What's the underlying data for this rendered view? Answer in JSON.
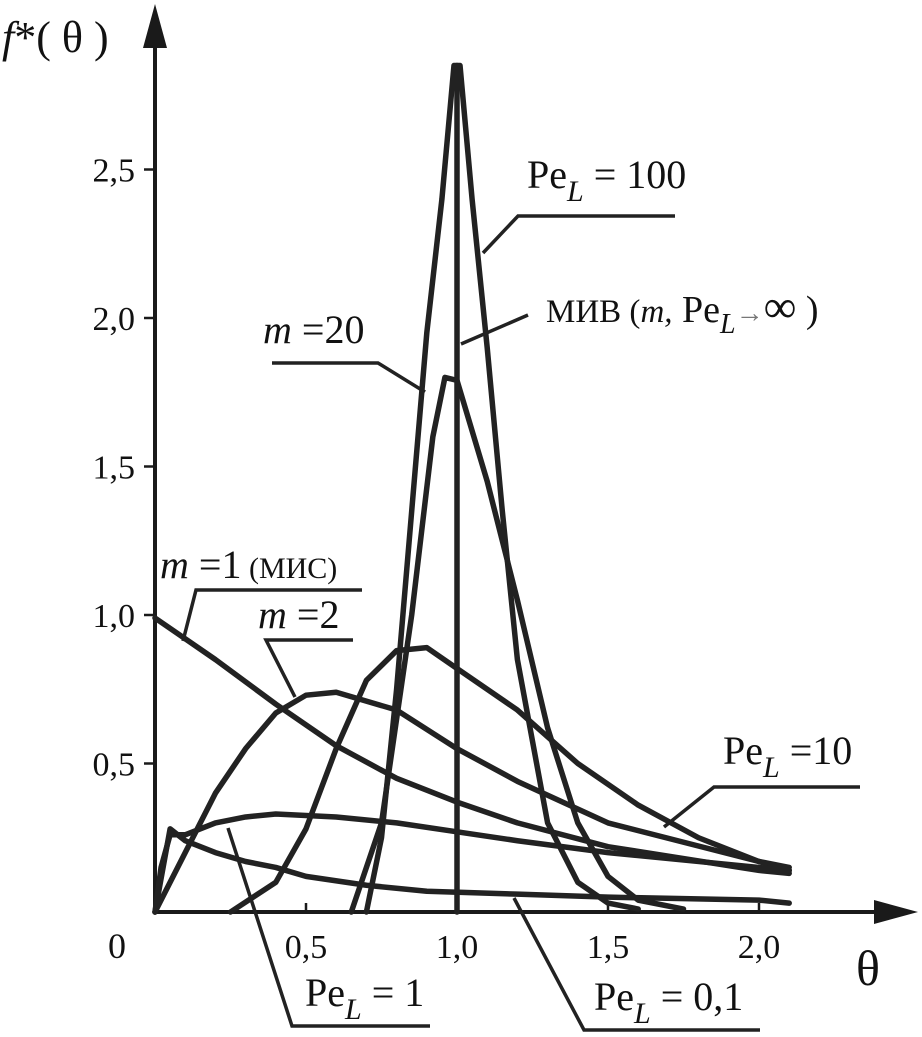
{
  "chart_data": {
    "type": "line",
    "title": "",
    "xlabel": "θ",
    "ylabel_prefix": "f",
    "ylabel_suffix": "*( θ )",
    "origin_label": "0",
    "xlim": [
      0,
      2.55
    ],
    "ylim": [
      0,
      2.95
    ],
    "x_ticks": [
      {
        "value": 0.5,
        "label": "0,5"
      },
      {
        "value": 1.0,
        "label": "1,0"
      },
      {
        "value": 1.5,
        "label": "1,5"
      },
      {
        "value": 2.0,
        "label": "2,0"
      }
    ],
    "y_ticks": [
      {
        "value": 0.5,
        "label": "0,5"
      },
      {
        "value": 1.0,
        "label": "1,0"
      },
      {
        "value": 1.5,
        "label": "1,5"
      },
      {
        "value": 2.0,
        "label": "2,0"
      },
      {
        "value": 2.5,
        "label": "2,5"
      }
    ],
    "grid": false,
    "series": [
      {
        "name": "m =1 (МИС)",
        "x": [
          0,
          0.2,
          0.4,
          0.6,
          0.8,
          1.0,
          1.2,
          1.5,
          2.0,
          2.1
        ],
        "y": [
          0.99,
          0.85,
          0.7,
          0.56,
          0.45,
          0.37,
          0.3,
          0.22,
          0.14,
          0.13
        ]
      },
      {
        "name": "m =2",
        "x": [
          0,
          0.1,
          0.2,
          0.3,
          0.4,
          0.5,
          0.6,
          0.8,
          1.0,
          1.2,
          1.5,
          2.0,
          2.1
        ],
        "y": [
          0,
          0.2,
          0.4,
          0.55,
          0.67,
          0.73,
          0.74,
          0.68,
          0.55,
          0.44,
          0.3,
          0.17,
          0.15
        ]
      },
      {
        "name": "m =20",
        "x": [
          0.65,
          0.75,
          0.85,
          0.92,
          0.96,
          1.0,
          1.1,
          1.2,
          1.3,
          1.4,
          1.5,
          1.6,
          1.75
        ],
        "y": [
          0,
          0.3,
          1.0,
          1.6,
          1.8,
          1.79,
          1.45,
          1.05,
          0.62,
          0.3,
          0.12,
          0.04,
          0.01
        ]
      },
      {
        "name": "Pe_L = 100",
        "x": [
          0.7,
          0.75,
          0.8,
          0.85,
          0.9,
          0.95,
          0.99,
          1.01,
          1.05,
          1.1,
          1.15,
          1.2,
          1.3,
          1.4,
          1.5,
          1.6
        ],
        "y": [
          0,
          0.25,
          0.75,
          1.35,
          1.95,
          2.4,
          2.85,
          2.85,
          2.4,
          1.9,
          1.35,
          0.85,
          0.3,
          0.1,
          0.03,
          0.01
        ]
      },
      {
        "name": "Pe_L =10",
        "x": [
          0.25,
          0.4,
          0.5,
          0.6,
          0.7,
          0.8,
          0.9,
          1.0,
          1.2,
          1.4,
          1.6,
          1.8,
          2.0,
          2.1
        ],
        "y": [
          0,
          0.1,
          0.28,
          0.55,
          0.78,
          0.88,
          0.89,
          0.82,
          0.68,
          0.5,
          0.36,
          0.25,
          0.17,
          0.14
        ]
      },
      {
        "name": "Pe_L = 1",
        "x": [
          0,
          0.02,
          0.05,
          0.1,
          0.2,
          0.3,
          0.4,
          0.6,
          0.8,
          1.0,
          1.2,
          1.5,
          2.0,
          2.1
        ],
        "y": [
          0,
          0.15,
          0.26,
          0.26,
          0.3,
          0.32,
          0.33,
          0.32,
          0.3,
          0.27,
          0.24,
          0.2,
          0.15,
          0.14
        ]
      },
      {
        "name": "Pe_L = 0,1",
        "x": [
          0,
          0.05,
          0.1,
          0.2,
          0.3,
          0.4,
          0.5,
          0.7,
          0.9,
          1.2,
          1.5,
          2.0,
          2.1
        ],
        "y": [
          0,
          0.28,
          0.24,
          0.2,
          0.17,
          0.15,
          0.12,
          0.09,
          0.07,
          0.06,
          0.05,
          0.04,
          0.03
        ]
      }
    ],
    "miv_line": {
      "x": 1.0,
      "name": "МИВ"
    }
  },
  "annotations": {
    "pe100": {
      "base": "Pe",
      "sub": "L",
      "rest": " = 100"
    },
    "miv": {
      "prefix": "МИВ (",
      "m": "m,",
      "base": " Pe",
      "sub": "L",
      "arrow": "→",
      "inf": "∞",
      "close": " )"
    },
    "m20": {
      "m": "m",
      "rest": " =20"
    },
    "m1": {
      "m": "m",
      "rest": " =1",
      "paren": " (МИС)"
    },
    "m2": {
      "m": "m",
      "rest": " =2"
    },
    "pe10": {
      "base": "Pe",
      "sub": "L",
      "rest": " =10"
    },
    "pe1": {
      "base": "Pe",
      "sub": "L",
      "rest": " = 1"
    },
    "pe01": {
      "base": "Pe",
      "sub": "L",
      "rest": " = 0,1"
    }
  }
}
